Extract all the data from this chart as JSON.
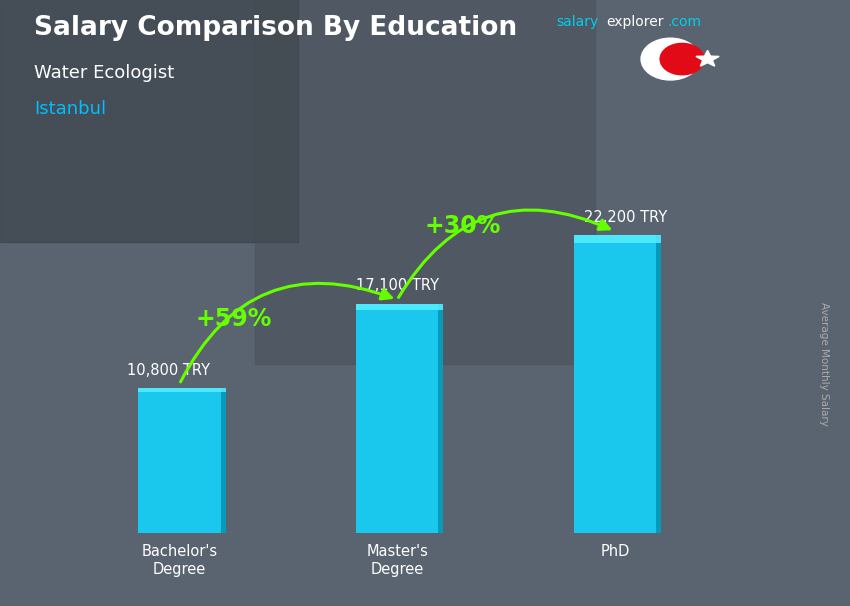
{
  "title": "Salary Comparison By Education",
  "subtitle": "Water Ecologist",
  "location": "Istanbul",
  "categories": [
    "Bachelor's\nDegree",
    "Master's\nDegree",
    "PhD"
  ],
  "values": [
    10800,
    17100,
    22200
  ],
  "value_labels": [
    "10,800 TRY",
    "17,100 TRY",
    "22,200 TRY"
  ],
  "bar_color": "#1AC8ED",
  "bar_color_right": "#0AAAD0",
  "bar_color_top": "#55DDFF",
  "background_color": "#5a6470",
  "pct_labels": [
    "+59%",
    "+30%"
  ],
  "pct_color": "#66ff00",
  "arrow_color": "#66ff00",
  "ylabel": "Average Monthly Salary",
  "brand_salary": "salary",
  "brand_explorer": "explorer",
  "brand_com": ".com",
  "brand_color_salary": "#00CFEE",
  "brand_color_explorer": "#ffffff",
  "brand_color_com": "#00CFEE",
  "title_color": "#ffffff",
  "subtitle_color": "#ffffff",
  "location_color": "#00BFFF",
  "value_label_color": "#ffffff",
  "xtick_color": "#ffffff",
  "ylabel_color": "#aaaaaa",
  "ylim": [
    0,
    28000
  ],
  "bar_width": 0.38,
  "flag_color": "#e30a17"
}
